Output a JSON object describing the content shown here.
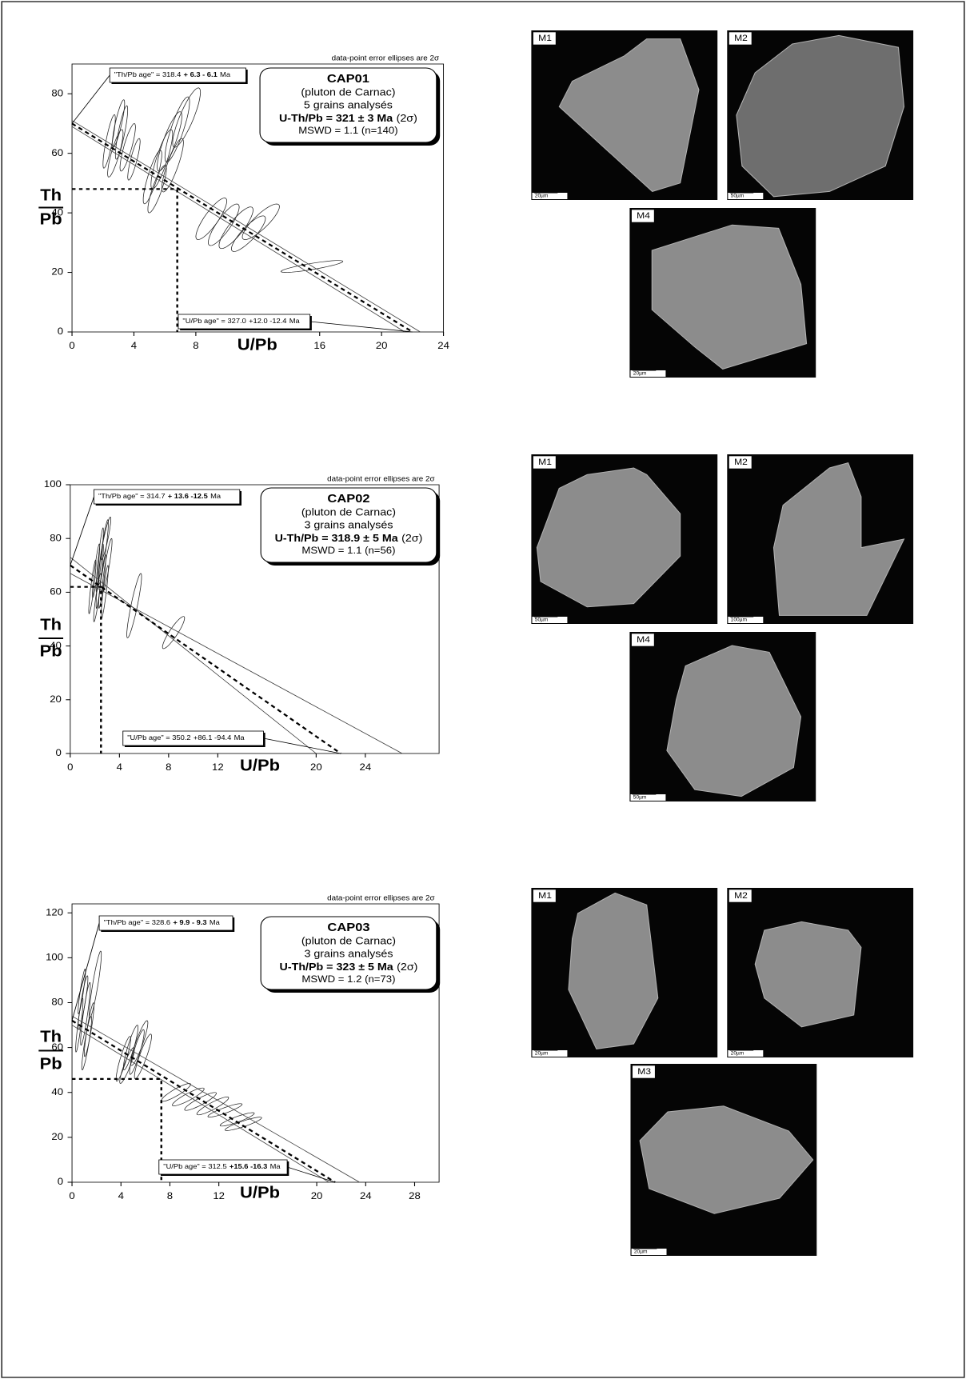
{
  "chart_data": [
    {
      "type": "scatter",
      "note": "data-point error ellipses are 2σ",
      "y_label_top": "Th",
      "y_label_bottom": "Pb",
      "x_label": "U/Pb",
      "title": "CAP01",
      "lines": [
        "(pluton de Carnac)",
        "5 grains analysés"
      ],
      "result": "U-Th/Pb = 321 ± 3 Ma",
      "result_note": "(2σ)",
      "mswd": "MSWD = 1.1 (n=140)",
      "th_pb_age": {
        "label": "\"Th/Pb age\" =  318.4",
        "error": "+ 6.3 - 6.1",
        "unit": "Ma",
        "bold": true
      },
      "u_pb_age": {
        "label": "\"U/Pb age\" = 327.0",
        "error": "+12.0 -12.4",
        "unit": "Ma",
        "bold": false
      },
      "xlim": [
        0,
        24
      ],
      "ylim": [
        0,
        90
      ],
      "xticks": [
        0,
        4,
        8,
        16,
        20,
        24
      ],
      "yticks": [
        0,
        20,
        40,
        60,
        80
      ],
      "fit_line": {
        "y_intercept": 70,
        "x_intercept": 22
      },
      "envelope": [
        {
          "y_intercept": 69,
          "x_intercept": 21.5
        },
        {
          "y_intercept": 71,
          "x_intercept": 22.5
        }
      ],
      "ref_point": {
        "x": 6.8,
        "y": 48
      },
      "rho": 0.85,
      "points": {
        "x": [
          2.4,
          2.8,
          3.2,
          3.6,
          4.0,
          3.0,
          5.2,
          5.8,
          6.3,
          6.8,
          7.4,
          5.5,
          6.5,
          9.0,
          9.8,
          10.6,
          11.4,
          12.2,
          15.5
        ],
        "y": [
          64,
          60,
          67,
          62,
          58,
          70,
          52,
          58,
          64,
          68,
          72,
          48,
          56,
          38,
          36,
          35,
          33,
          37,
          22
        ],
        "xerr": [
          0.4,
          0.5,
          0.4,
          0.5,
          0.4,
          0.4,
          0.6,
          0.7,
          0.8,
          0.8,
          0.9,
          0.6,
          0.7,
          1.0,
          1.0,
          1.1,
          1.1,
          1.2,
          2.0
        ],
        "yerr": [
          9,
          8,
          9,
          8,
          7,
          8,
          9,
          10,
          10,
          11,
          10,
          8,
          9,
          7,
          7,
          7,
          6,
          6,
          2
        ]
      }
    },
    {
      "type": "scatter",
      "note": "data-point error ellipses are 2σ",
      "y_label_top": "Th",
      "y_label_bottom": "Pb",
      "x_label": "U/Pb",
      "title": "CAP02",
      "lines": [
        "(pluton de Carnac)",
        "3 grains analysés"
      ],
      "result": "U-Th/Pb = 318.9 ± 5 Ma",
      "result_note": "(2σ)",
      "mswd": "MSWD = 1.1 (n=56)",
      "th_pb_age": {
        "label": "\"Th/Pb age\" =  314.7",
        "error": "+ 13.6 -12.5",
        "unit": "Ma",
        "bold": true
      },
      "u_pb_age": {
        "label": "\"U/Pb age\" = 350.2",
        "error": "+86.1 -94.4",
        "unit": "Ma",
        "bold": false
      },
      "xlim": [
        0,
        30
      ],
      "ylim": [
        0,
        100
      ],
      "xticks": [
        0,
        4,
        8,
        12,
        20,
        24
      ],
      "yticks": [
        0,
        20,
        40,
        60,
        80,
        100
      ],
      "fit_line": {
        "y_intercept": 70,
        "x_intercept": 22
      },
      "envelope": [
        {
          "y_intercept": 73,
          "x_intercept": 20
        },
        {
          "y_intercept": 67,
          "x_intercept": 27
        }
      ],
      "ref_point": {
        "x": 2.5,
        "y": 62
      },
      "rho": 0.9,
      "points": {
        "x": [
          1.8,
          2.1,
          2.4,
          2.7,
          3.0,
          2.2,
          2.6,
          2.9,
          2.4,
          2.8,
          5.2,
          8.4
        ],
        "y": [
          62,
          68,
          72,
          75,
          70,
          58,
          64,
          80,
          66,
          60,
          55,
          45
        ],
        "xerr": [
          0.3,
          0.3,
          0.3,
          0.4,
          0.4,
          0.3,
          0.3,
          0.4,
          0.3,
          0.3,
          0.6,
          0.9
        ],
        "yerr": [
          10,
          10,
          12,
          12,
          10,
          9,
          10,
          8,
          12,
          10,
          12,
          6
        ]
      }
    },
    {
      "type": "scatter",
      "note": "data-point error ellipses are 2σ",
      "y_label_top": "Th",
      "y_label_bottom": "Pb",
      "x_label": "U/Pb",
      "title": "CAP03",
      "lines": [
        "(pluton de Carnac)",
        "3 grains analysés"
      ],
      "result": "U-Th/Pb = 323 ± 5 Ma",
      "result_note": "(2σ)",
      "mswd": "MSWD = 1.2 (n=73)",
      "th_pb_age": {
        "label": "\"Th/Pb age\" =  328.6",
        "error": "+ 9.9 - 9.3",
        "unit": "Ma",
        "bold": true
      },
      "u_pb_age": {
        "label": "\"U/Pb age\" = 312.5",
        "error": "+15.6 -16.3",
        "unit": "Ma",
        "bold": true
      },
      "xlim": [
        0,
        30
      ],
      "ylim": [
        0,
        124
      ],
      "xticks": [
        0,
        4,
        8,
        12,
        20,
        24,
        28
      ],
      "yticks": [
        0,
        20,
        40,
        60,
        80,
        100,
        120
      ],
      "fit_line": {
        "y_intercept": 72,
        "x_intercept": 21.5
      },
      "envelope": [
        {
          "y_intercept": 70,
          "x_intercept": 21
        },
        {
          "y_intercept": 74,
          "x_intercept": 23.5
        }
      ],
      "ref_point": {
        "x": 7.3,
        "y": 46
      },
      "rho": 0.9,
      "points": {
        "x": [
          0.6,
          0.9,
          1.1,
          1.4,
          0.8,
          1.2,
          1.9,
          4.2,
          4.8,
          5.3,
          5.8,
          4.5,
          5.5,
          8.5,
          9.5,
          10.5,
          11.5,
          12.5,
          13.5,
          14.0
        ],
        "y": [
          70,
          80,
          75,
          68,
          85,
          62,
          88,
          55,
          60,
          58,
          56,
          52,
          62,
          40,
          38,
          36,
          34,
          32,
          28,
          26
        ],
        "xerr": [
          0.3,
          0.4,
          0.4,
          0.4,
          0.3,
          0.4,
          0.5,
          0.6,
          0.6,
          0.6,
          0.7,
          0.6,
          0.7,
          1.2,
          1.3,
          1.3,
          1.3,
          1.4,
          1.4,
          1.5
        ],
        "yerr": [
          12,
          12,
          14,
          12,
          10,
          12,
          15,
          10,
          10,
          10,
          10,
          8,
          10,
          4,
          4,
          4,
          4,
          3,
          3,
          3
        ]
      }
    }
  ],
  "micrographs": [
    {
      "panels": [
        {
          "label": "M1",
          "scale": "20µm"
        },
        {
          "label": "M2",
          "scale": "50µm"
        },
        {
          "label": "M4",
          "scale": "20µm"
        }
      ]
    },
    {
      "panels": [
        {
          "label": "M1",
          "scale": "50µm"
        },
        {
          "label": "M2",
          "scale": "100µm"
        },
        {
          "label": "M4",
          "scale": "50µm"
        }
      ]
    },
    {
      "panels": [
        {
          "label": "M1",
          "scale": "20µm"
        },
        {
          "label": "M2",
          "scale": "20µm"
        },
        {
          "label": "M3",
          "scale": "20µm"
        }
      ]
    }
  ]
}
